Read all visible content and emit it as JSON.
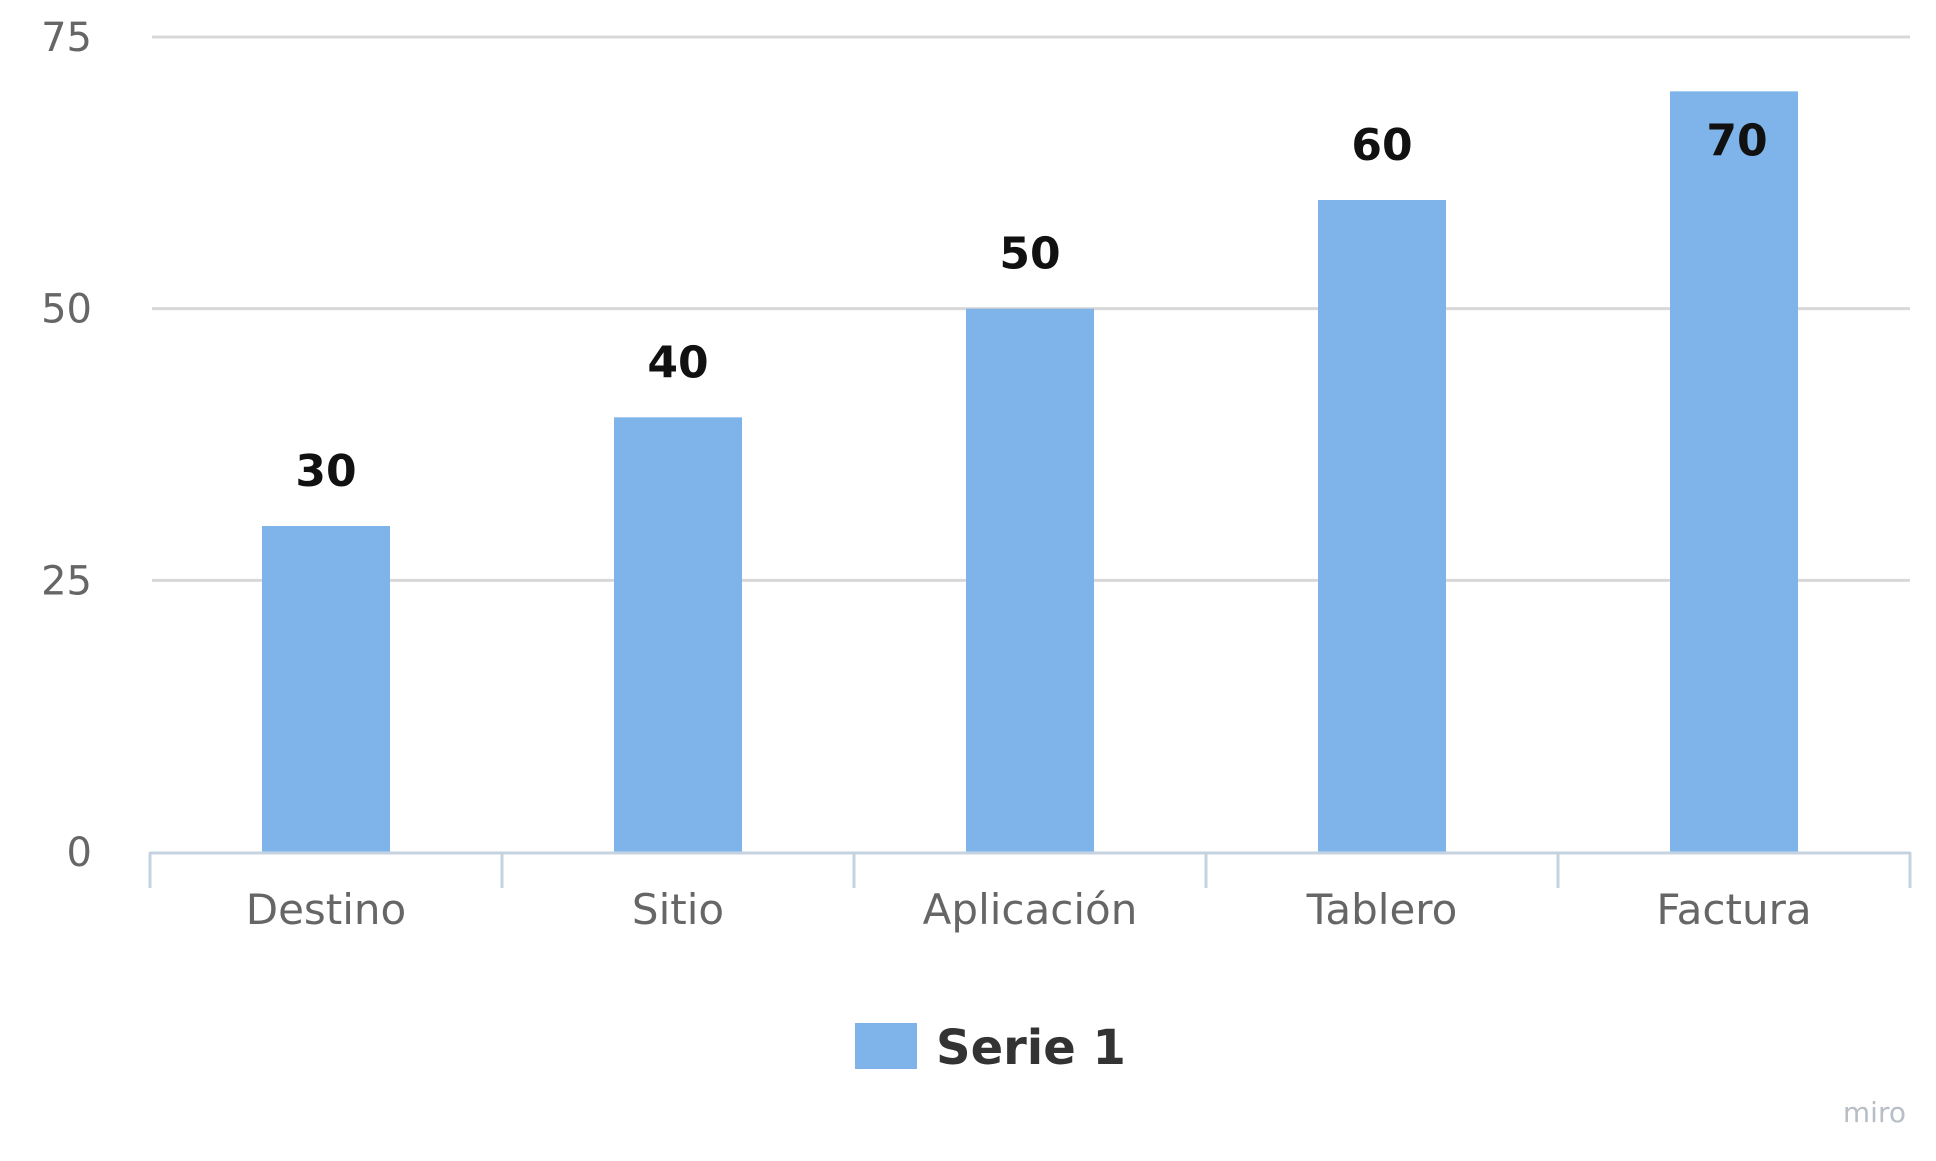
{
  "chart_data": {
    "type": "bar",
    "categories": [
      "Destino",
      "Sitio",
      "Aplicación",
      "Tablero",
      "Factura"
    ],
    "series": [
      {
        "name": "Serie 1",
        "values": [
          30,
          40,
          50,
          60,
          70
        ],
        "color": "#7eb4ea"
      }
    ],
    "ylim": [
      0,
      75
    ],
    "yticks": [
      0,
      25,
      50,
      75
    ],
    "grid": true,
    "legend": "bottom-center",
    "data_labels": true
  },
  "colors": {
    "bar": "#7eb4ea",
    "grid": "#d8d8d8",
    "axis": "#c5d3e0",
    "text": "#666666"
  },
  "watermark": "miro"
}
